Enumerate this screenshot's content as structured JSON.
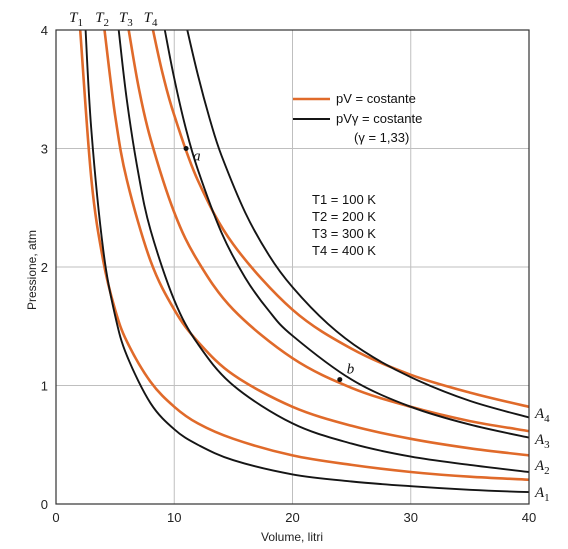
{
  "chart_data": {
    "type": "line",
    "xlabel": "Volume, litri",
    "ylabel": "Pressione, atm",
    "xlim": [
      0,
      40
    ],
    "ylim": [
      0,
      4
    ],
    "xticks": [
      "0",
      "10",
      "20",
      "30",
      "40"
    ],
    "yticks": [
      "0",
      "1",
      "2",
      "3",
      "4"
    ],
    "grid": true,
    "colors": {
      "isotherm": "#e06a2a",
      "adiabat": "#151515",
      "grid": "#bfbfbf"
    },
    "legend": {
      "position": "top-right",
      "isotherm_label": "pV = costante",
      "adiabat_label": "pVγ = costante",
      "gamma_note": "(γ = 1,33)",
      "gamma_value": 1.33
    },
    "temperatures": [
      "T1 = 100 K",
      "T2 = 200 K",
      "T3 = 300 K",
      "T4 = 400 K"
    ],
    "isotherms": [
      {
        "name": "T1",
        "x": [
          2.05,
          3,
          4,
          5,
          6,
          8,
          10,
          12,
          15,
          20,
          25,
          30,
          35,
          40
        ],
        "y": [
          4.0,
          2.73,
          2.05,
          1.64,
          1.37,
          1.03,
          0.82,
          0.68,
          0.55,
          0.41,
          0.33,
          0.27,
          0.23,
          0.205
        ]
      },
      {
        "name": "T2",
        "x": [
          4.1,
          5,
          6,
          8,
          10,
          12,
          15,
          20,
          25,
          30,
          35,
          40
        ],
        "y": [
          4.0,
          3.28,
          2.73,
          2.05,
          1.64,
          1.37,
          1.09,
          0.82,
          0.66,
          0.55,
          0.47,
          0.41
        ]
      },
      {
        "name": "T3",
        "x": [
          6.15,
          7,
          8,
          10,
          12,
          15,
          20,
          25,
          30,
          35,
          40
        ],
        "y": [
          4.0,
          3.51,
          3.08,
          2.46,
          2.05,
          1.64,
          1.23,
          0.98,
          0.82,
          0.7,
          0.615
        ]
      },
      {
        "name": "T4",
        "x": [
          8.2,
          9,
          10,
          12,
          15,
          20,
          25,
          30,
          35,
          40
        ],
        "y": [
          4.0,
          3.64,
          3.28,
          2.73,
          2.19,
          1.64,
          1.31,
          1.09,
          0.94,
          0.82
        ]
      }
    ],
    "adiabats": [
      {
        "name": "A1",
        "x": [
          2.5,
          3,
          4,
          5,
          6,
          8,
          10,
          12,
          15,
          20,
          25,
          30,
          35,
          40
        ],
        "y": [
          4.0,
          3.14,
          2.14,
          1.59,
          1.25,
          0.85,
          0.63,
          0.5,
          0.37,
          0.25,
          0.19,
          0.15,
          0.12,
          0.1
        ]
      },
      {
        "name": "A2",
        "x": [
          5.3,
          6,
          7,
          8,
          10,
          12,
          15,
          20,
          25,
          30,
          35,
          40
        ],
        "y": [
          4.0,
          3.4,
          2.77,
          2.31,
          1.72,
          1.35,
          1.0,
          0.68,
          0.51,
          0.4,
          0.33,
          0.27
        ]
      },
      {
        "name": "A3",
        "x": [
          9.2,
          10,
          11,
          12,
          14,
          16,
          18,
          20,
          25,
          30,
          35,
          40
        ],
        "y": [
          4.0,
          3.59,
          3.16,
          2.82,
          2.29,
          1.91,
          1.63,
          1.42,
          1.05,
          0.82,
          0.67,
          0.56
        ]
      },
      {
        "name": "A4",
        "x": [
          11.1,
          12,
          13,
          14,
          16,
          18,
          20,
          23,
          26,
          30,
          35,
          40
        ],
        "y": [
          4.0,
          3.62,
          3.25,
          2.94,
          2.46,
          2.1,
          1.83,
          1.52,
          1.29,
          1.07,
          0.87,
          0.73
        ]
      }
    ],
    "top_labels": [
      {
        "text": "T1",
        "x": 1.7
      },
      {
        "text": "T2",
        "x": 3.9
      },
      {
        "text": "T3",
        "x": 5.9
      },
      {
        "text": "T4",
        "x": 8.0
      }
    ],
    "right_labels": [
      {
        "text": "A4",
        "y": 0.77
      },
      {
        "text": "A3",
        "y": 0.55
      },
      {
        "text": "A2",
        "y": 0.33
      },
      {
        "text": "A1",
        "y": 0.1
      }
    ],
    "points": [
      {
        "label": "a",
        "x": 11.0,
        "y": 3.0
      },
      {
        "label": "b",
        "x": 24.0,
        "y": 1.05
      }
    ]
  }
}
